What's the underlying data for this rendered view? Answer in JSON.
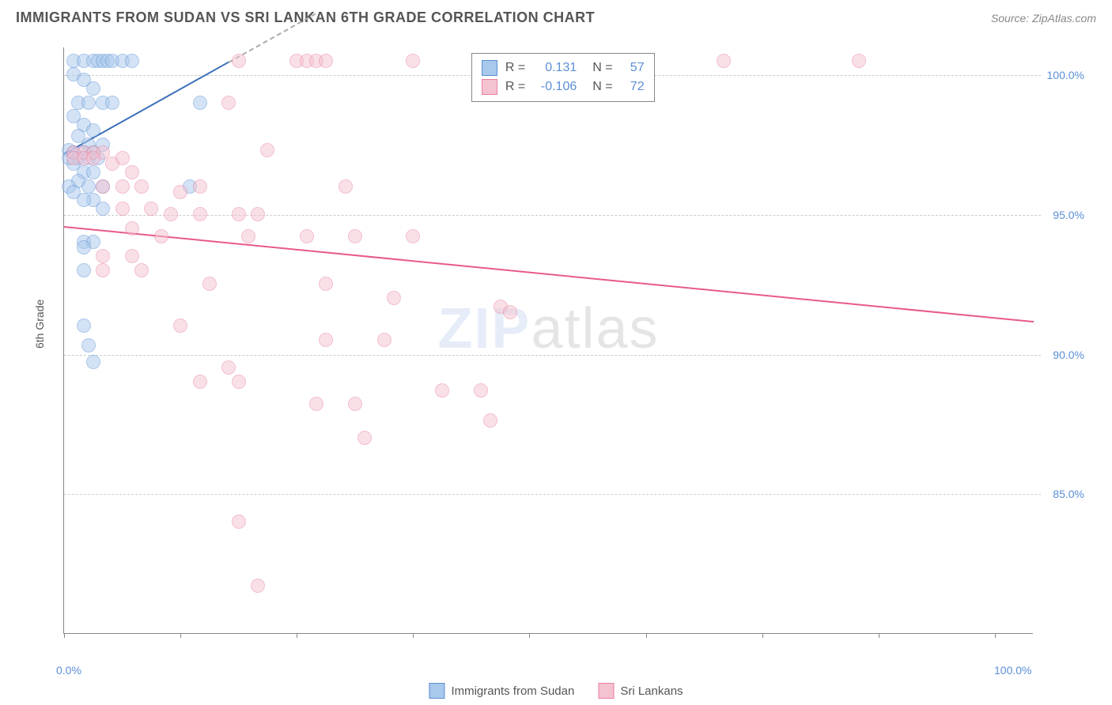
{
  "title": "IMMIGRANTS FROM SUDAN VS SRI LANKAN 6TH GRADE CORRELATION CHART",
  "source": "Source: ZipAtlas.com",
  "ylabel": "6th Grade",
  "watermark_part1": "ZIP",
  "watermark_part2": "atlas",
  "chart": {
    "type": "scatter",
    "xlim": [
      0,
      100
    ],
    "ylim": [
      80,
      101
    ],
    "x_tick_positions": [
      0,
      12,
      24,
      36,
      48,
      60,
      72,
      84,
      96
    ],
    "x_tick_labels_shown": {
      "0": "0.0%",
      "100": "100.0%"
    },
    "y_gridlines": [
      85,
      90,
      95,
      100
    ],
    "y_tick_labels": {
      "85": "85.0%",
      "90": "90.0%",
      "95": "95.0%",
      "100": "100.0%"
    },
    "background_color": "#ffffff",
    "grid_color": "#cccccc",
    "axis_color": "#888888",
    "tick_label_color": "#5b8fd6",
    "label_color": "#555555",
    "label_fontsize": 14,
    "tick_fontsize": 14,
    "marker_radius": 9,
    "marker_opacity": 0.5,
    "series": [
      {
        "name": "Immigrants from Sudan",
        "color_fill": "#a8c8ec",
        "color_stroke": "#5b8fd6",
        "R": "0.131",
        "N": "57",
        "trend": {
          "x1": 0,
          "y1": 97.2,
          "x2": 17,
          "y2": 100.5,
          "color": "#3a6fb8",
          "width": 2,
          "dash_extend_to_x": 26
        },
        "points": [
          [
            1,
            100.5
          ],
          [
            2,
            100.5
          ],
          [
            3,
            100.5
          ],
          [
            3.5,
            100.5
          ],
          [
            4,
            100.5
          ],
          [
            4.5,
            100.5
          ],
          [
            5,
            100.5
          ],
          [
            6,
            100.5
          ],
          [
            7,
            100.5
          ],
          [
            1,
            100
          ],
          [
            2,
            99.8
          ],
          [
            3,
            99.5
          ],
          [
            1.5,
            99
          ],
          [
            2.5,
            99
          ],
          [
            4,
            99
          ],
          [
            5,
            99
          ],
          [
            14,
            99
          ],
          [
            1,
            98.5
          ],
          [
            2,
            98.2
          ],
          [
            3,
            98
          ],
          [
            1.5,
            97.8
          ],
          [
            2.5,
            97.5
          ],
          [
            4,
            97.5
          ],
          [
            0.5,
            97.3
          ],
          [
            1,
            97.2
          ],
          [
            2,
            97.2
          ],
          [
            3,
            97.2
          ],
          [
            0.5,
            97
          ],
          [
            1.5,
            97
          ],
          [
            2.5,
            97
          ],
          [
            3.5,
            97
          ],
          [
            1,
            96.8
          ],
          [
            2,
            96.5
          ],
          [
            3,
            96.5
          ],
          [
            1.5,
            96.2
          ],
          [
            2.5,
            96
          ],
          [
            4,
            96
          ],
          [
            0.5,
            96
          ],
          [
            1,
            95.8
          ],
          [
            3,
            95.5
          ],
          [
            2,
            95.5
          ],
          [
            4,
            95.2
          ],
          [
            13,
            96
          ],
          [
            2,
            94
          ],
          [
            3,
            94
          ],
          [
            2,
            93.8
          ],
          [
            2,
            93
          ],
          [
            2,
            91
          ],
          [
            2.5,
            90.3
          ],
          [
            3,
            89.7
          ]
        ]
      },
      {
        "name": "Sri Lankans",
        "color_fill": "#f5c2d0",
        "color_stroke": "#e87fa0",
        "R": "-0.106",
        "N": "72",
        "trend": {
          "x1": 0,
          "y1": 94.6,
          "x2": 100,
          "y2": 91.2,
          "color": "#e85a88",
          "width": 2
        },
        "points": [
          [
            18,
            100.5
          ],
          [
            24,
            100.5
          ],
          [
            25,
            100.5
          ],
          [
            26,
            100.5
          ],
          [
            27,
            100.5
          ],
          [
            36,
            100.5
          ],
          [
            68,
            100.5
          ],
          [
            82,
            100.5
          ],
          [
            17,
            99
          ],
          [
            1,
            97.2
          ],
          [
            2,
            97.2
          ],
          [
            3,
            97.2
          ],
          [
            4,
            97.2
          ],
          [
            1,
            97
          ],
          [
            2,
            97
          ],
          [
            3,
            97
          ],
          [
            5,
            96.8
          ],
          [
            7,
            96.5
          ],
          [
            6,
            97
          ],
          [
            21,
            97.3
          ],
          [
            4,
            96
          ],
          [
            6,
            96
          ],
          [
            8,
            96
          ],
          [
            12,
            95.8
          ],
          [
            14,
            96
          ],
          [
            29,
            96
          ],
          [
            6,
            95.2
          ],
          [
            9,
            95.2
          ],
          [
            11,
            95
          ],
          [
            14,
            95
          ],
          [
            18,
            95
          ],
          [
            20,
            95
          ],
          [
            7,
            94.5
          ],
          [
            10,
            94.2
          ],
          [
            19,
            94.2
          ],
          [
            25,
            94.2
          ],
          [
            30,
            94.2
          ],
          [
            36,
            94.2
          ],
          [
            4,
            93.5
          ],
          [
            7,
            93.5
          ],
          [
            8,
            93
          ],
          [
            4,
            93
          ],
          [
            15,
            92.5
          ],
          [
            27,
            92.5
          ],
          [
            34,
            92
          ],
          [
            45,
            91.7
          ],
          [
            46,
            91.5
          ],
          [
            12,
            91
          ],
          [
            27,
            90.5
          ],
          [
            33,
            90.5
          ],
          [
            17,
            89.5
          ],
          [
            14,
            89
          ],
          [
            18,
            89
          ],
          [
            39,
            88.7
          ],
          [
            43,
            88.7
          ],
          [
            26,
            88.2
          ],
          [
            30,
            88.2
          ],
          [
            44,
            87.6
          ],
          [
            31,
            87
          ],
          [
            18,
            84
          ],
          [
            20,
            81.7
          ]
        ]
      }
    ]
  },
  "legend_top": {
    "R_label": "R =",
    "N_label": "N ="
  },
  "legend_bottom": [
    {
      "label": "Immigrants from Sudan",
      "fill": "#a8c8ec",
      "stroke": "#5b8fd6"
    },
    {
      "label": "Sri Lankans",
      "fill": "#f5c2d0",
      "stroke": "#e87fa0"
    }
  ]
}
